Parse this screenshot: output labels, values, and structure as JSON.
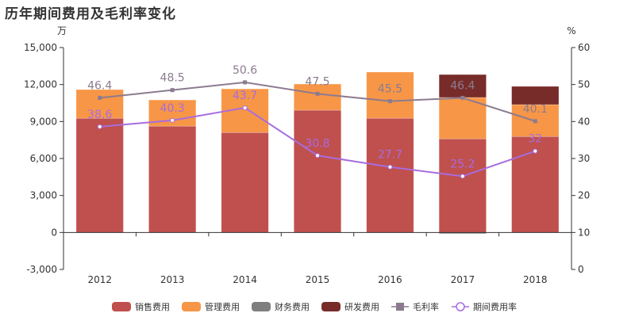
{
  "title": "历年期间费用及毛利率变化",
  "chart_data": {
    "type": "bar",
    "title": "历年期间费用及毛利率变化",
    "categories": [
      "2012",
      "2013",
      "2014",
      "2015",
      "2016",
      "2017",
      "2018"
    ],
    "left_axis": {
      "unit": "万",
      "ylim": [
        -3000,
        15000
      ],
      "ticks": [
        -3000,
        0,
        3000,
        6000,
        9000,
        12000,
        15000
      ],
      "tick_labels": [
        "-3,000",
        "0",
        "3,000",
        "6,000",
        "9,000",
        "12,000",
        "15,000"
      ]
    },
    "right_axis": {
      "unit": "%",
      "ylim": [
        0,
        60
      ],
      "ticks": [
        0,
        10,
        20,
        30,
        40,
        50,
        60
      ],
      "tick_labels": [
        "0",
        "10",
        "20",
        "30",
        "40",
        "50",
        "60"
      ]
    },
    "bar_series": [
      {
        "name": "销售费用",
        "color": "#c0504d",
        "values": [
          9270,
          8630,
          8110,
          9920,
          9270,
          7600,
          7790
        ]
      },
      {
        "name": "管理费用",
        "color": "#f79646",
        "values": [
          2320,
          2120,
          3540,
          2120,
          3740,
          3350,
          2580
        ]
      },
      {
        "name": "财务费用",
        "color": "#7f7f7f",
        "values": [
          0,
          0,
          0,
          0,
          0,
          -100,
          0
        ]
      },
      {
        "name": "研发费用",
        "color": "#772c2a",
        "values": [
          0,
          0,
          0,
          0,
          0,
          1860,
          1480
        ]
      }
    ],
    "line_series": [
      {
        "name": "毛利率",
        "color": "#8c7b8f",
        "marker": "square",
        "values": [
          46.4,
          48.5,
          50.6,
          47.5,
          45.5,
          46.4,
          40.1
        ],
        "labels": [
          "46.4",
          "48.5",
          "50.6",
          "47.5",
          "45.5",
          "46.4",
          "40.1"
        ]
      },
      {
        "name": "期间费用率",
        "color": "#a76cdf",
        "marker": "circle",
        "values": [
          38.6,
          40.3,
          43.7,
          30.8,
          27.7,
          25.2,
          32
        ],
        "labels": [
          "38.6",
          "40.3",
          "43.7",
          "30.8",
          "27.7",
          "25.2",
          "32"
        ]
      }
    ],
    "legend": "bottom",
    "grid": false
  }
}
